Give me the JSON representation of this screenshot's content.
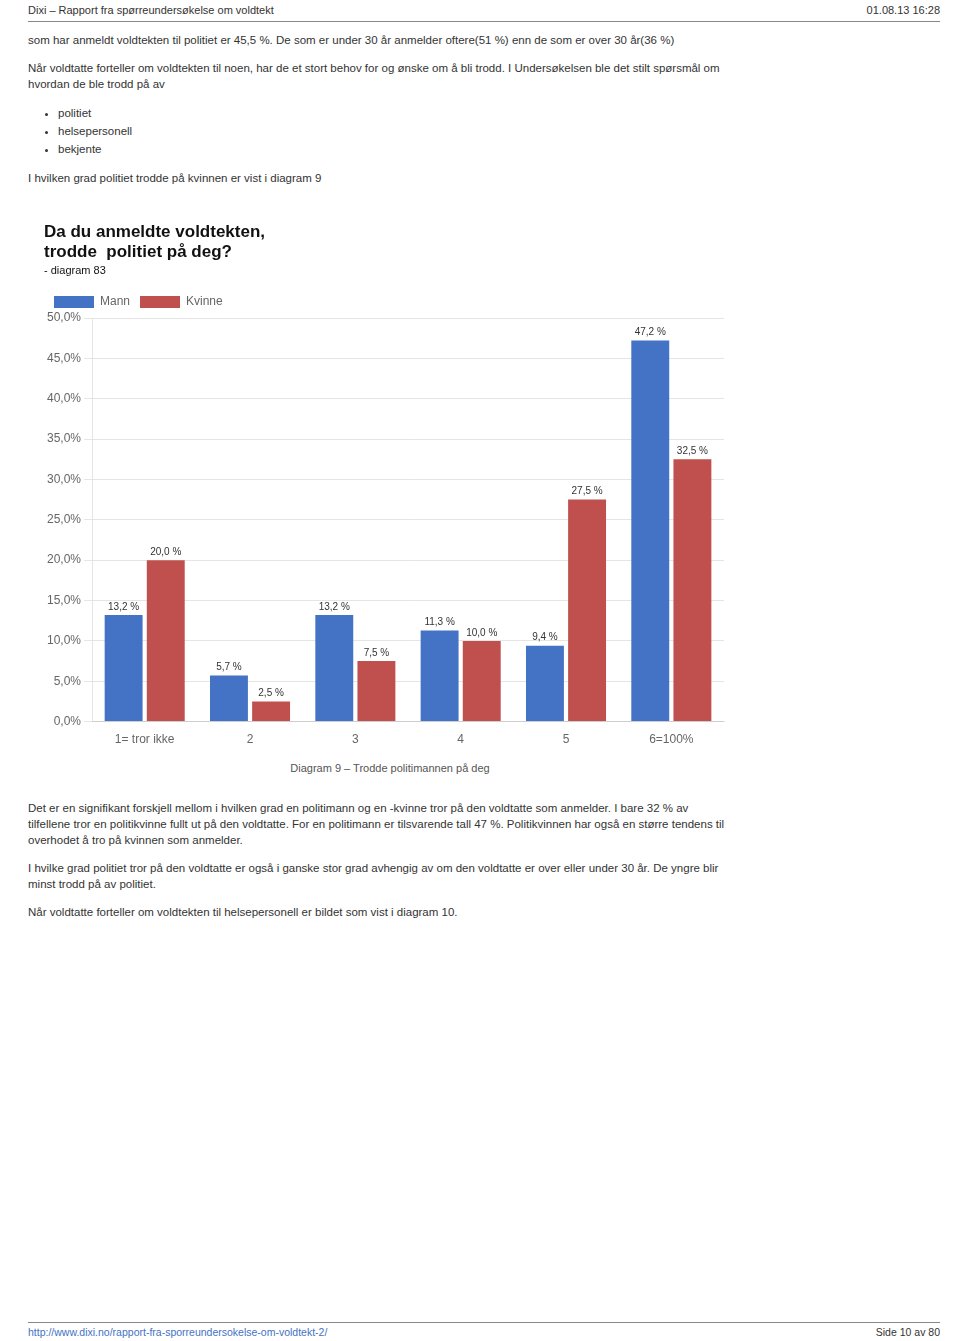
{
  "page": {
    "header": {
      "left": "Dixi – Rapport fra spørreundersøkelse om voldtekt",
      "right": "01.08.13 16:28"
    },
    "before": [
      {
        "lines": [
          "som har anmeldt voldtekten til politiet er 45,5 %. De som er under 30 år anmelder oftere(51 %) enn de som er over 30 år(36 %)"
        ]
      },
      {
        "lines": [
          "Når voldtatte forteller om voldtekten til noen, har de et stort behov for og ønske om å bli trodd. I Undersøkelsen ble det stilt spørsmål om",
          "hvordan de ble trodd på av"
        ]
      },
      {
        "bullets": [
          "politiet",
          "helsepersonell",
          "bekjente"
        ]
      },
      {
        "lines": [
          "I hvilken grad politiet trodde på kvinnen er vist i diagram 9"
        ]
      }
    ],
    "after": [
      {
        "lines": [
          "Det er en signifikant forskjell mellom i hvilken grad en politimann og en -kvinne tror på den voldtatte som anmelder. I bare 32 % av",
          "tilfellene tror en politikvinne fullt ut på den voldtatte. For en politimann er tilsvarende tall 47 %. Politikvinnen har også en større tendens til",
          "overhodet å tro på kvinnen som anmelder."
        ]
      },
      {
        "lines": [
          "I hvilke grad politiet tror på den voldtatte er også i ganske stor grad avhengig av om den voldtatte er over eller under 30 år. De yngre blir",
          "minst trodd på av politiet."
        ]
      },
      {
        "lines": [
          "Når voldtatte forteller om voldtekten til helsepersonell er bildet som vist i diagram 10."
        ]
      }
    ],
    "footer": {
      "left": "http://www.dixi.no/rapport-fra-sporreundersokelse-om-voldtekt-2/",
      "right": "Side 10 av 80"
    }
  },
  "chart_data": {
    "type": "bar",
    "title": [
      "Da du anmeldte voldtekten,",
      "trodde  politiet på deg?"
    ],
    "subtitle": "- diagram 83",
    "caption": "Diagram 9 – Trodde politimannen på deg",
    "categories": [
      "1= tror ikke",
      "2",
      "3",
      "4",
      "5",
      "6=100%"
    ],
    "series": [
      {
        "name": "Mann",
        "color": "#4472C4",
        "values": [
          13.2,
          5.7,
          13.2,
          11.3,
          9.4,
          47.2
        ],
        "value_labels": [
          "13,2 %",
          "5,7 %",
          "13,2 %",
          "11,3 %",
          "9,4 %",
          "47,2 %"
        ]
      },
      {
        "name": "Kvinne",
        "color": "#C0504D",
        "values": [
          20.0,
          2.5,
          7.5,
          10.0,
          27.5,
          32.5
        ],
        "value_labels": [
          "20,0 %",
          "2,5 %",
          "7,5 %",
          "10,0 %",
          "27,5 %",
          "32,5 %"
        ]
      }
    ],
    "ylim": [
      0,
      50
    ],
    "yticks": [
      {
        "value": 0,
        "label": "0,0%"
      },
      {
        "value": 5,
        "label": "5,0%"
      },
      {
        "value": 10,
        "label": "10,0%"
      },
      {
        "value": 15,
        "label": "15,0%"
      },
      {
        "value": 20,
        "label": "20,0%"
      },
      {
        "value": 25,
        "label": "25,0%"
      },
      {
        "value": 30,
        "label": "30,0%"
      },
      {
        "value": 35,
        "label": "35,0%"
      },
      {
        "value": 40,
        "label": "40,0%"
      },
      {
        "value": 45,
        "label": "45,0%"
      },
      {
        "value": 50,
        "label": "50,0%"
      }
    ],
    "grid": true,
    "legend": "upper left",
    "data_labels": true
  }
}
